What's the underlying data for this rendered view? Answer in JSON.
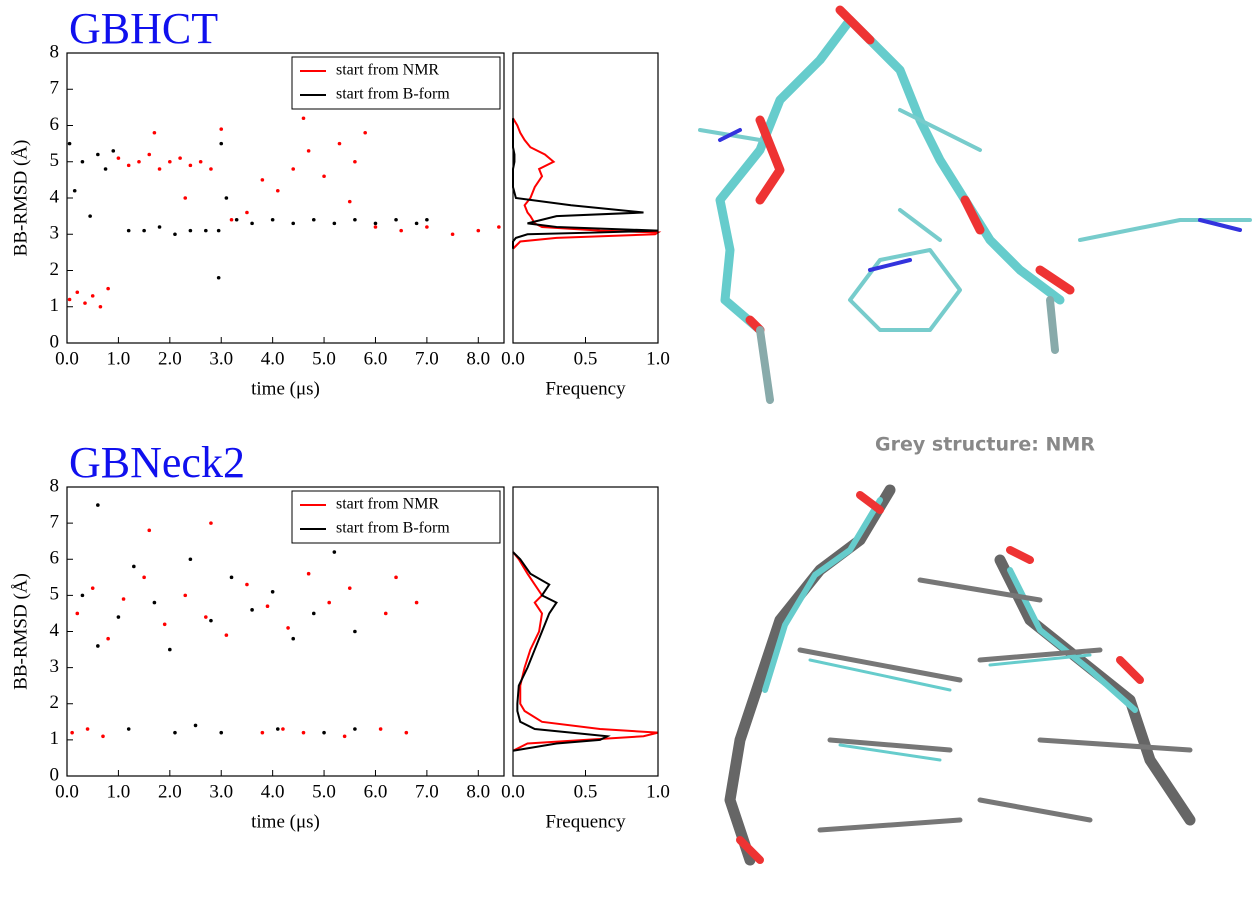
{
  "annotation": "Grey structure: NMR",
  "chart_data": [
    {
      "type": "scatter",
      "title": "GBHCT",
      "xlabel": "time (μs)",
      "ylabel": "BB-RMSD (Å)",
      "xlim": [
        0,
        8.5
      ],
      "ylim": [
        0,
        8
      ],
      "xticks": [
        {
          "value": 0,
          "label": "0.0"
        },
        {
          "value": 1,
          "label": "1.0"
        },
        {
          "value": 2,
          "label": "2.0"
        },
        {
          "value": 3,
          "label": "3.0"
        },
        {
          "value": 4,
          "label": "4.0"
        },
        {
          "value": 5,
          "label": "5.0"
        },
        {
          "value": 6,
          "label": "6.0"
        },
        {
          "value": 7,
          "label": "7.0"
        },
        {
          "value": 8,
          "label": "8.0"
        }
      ],
      "yticks": [
        0,
        1,
        2,
        3,
        4,
        5,
        6,
        7,
        8
      ],
      "legend": "upper right",
      "series": [
        {
          "name": "start from NMR",
          "color": "#ff0000",
          "x": [
            0.05,
            0.2,
            0.35,
            0.5,
            0.65,
            0.8,
            1.0,
            1.2,
            1.4,
            1.6,
            1.8,
            2.0,
            2.2,
            2.4,
            2.6,
            2.8,
            1.7,
            2.3,
            3.0,
            3.2,
            3.5,
            3.8,
            4.1,
            4.4,
            4.7,
            5.0,
            5.3,
            5.6,
            5.8,
            4.6,
            5.5,
            6.0,
            6.5,
            7.0,
            7.5,
            8.0,
            8.4
          ],
          "values": [
            1.2,
            1.4,
            1.1,
            1.3,
            1.0,
            1.5,
            5.1,
            4.9,
            5.0,
            5.2,
            4.8,
            5.0,
            5.1,
            4.9,
            5.0,
            4.8,
            5.8,
            4.0,
            5.9,
            3.4,
            3.6,
            4.5,
            4.2,
            4.8,
            5.3,
            4.6,
            5.5,
            5.0,
            5.8,
            6.2,
            3.9,
            3.2,
            3.1,
            3.2,
            3.0,
            3.1,
            3.2
          ]
        },
        {
          "name": "start from B-form",
          "color": "#000000",
          "x": [
            0.05,
            0.15,
            0.3,
            0.45,
            0.6,
            0.75,
            0.9,
            1.2,
            1.5,
            1.8,
            2.1,
            2.4,
            2.7,
            2.95,
            3.0,
            3.1,
            3.3,
            3.6,
            4.0,
            4.4,
            4.8,
            5.2,
            5.6,
            6.0,
            6.4,
            6.8,
            7.0,
            2.95
          ],
          "values": [
            5.5,
            4.2,
            5.0,
            3.5,
            5.2,
            4.8,
            5.3,
            3.1,
            3.1,
            3.2,
            3.0,
            3.1,
            3.1,
            3.1,
            5.5,
            4.0,
            3.4,
            3.3,
            3.4,
            3.3,
            3.4,
            3.3,
            3.4,
            3.3,
            3.4,
            3.3,
            3.4,
            1.8
          ]
        }
      ]
    },
    {
      "type": "line",
      "xlabel": "Frequency",
      "xlim": [
        0,
        1
      ],
      "ylim": [
        0,
        8
      ],
      "xticks": [
        {
          "value": 0,
          "label": "0.0"
        },
        {
          "value": 0.5,
          "label": "0.5"
        },
        {
          "value": 1,
          "label": "1.0"
        }
      ],
      "y": [
        2.6,
        2.8,
        2.9,
        3.0,
        3.05,
        3.1,
        3.2,
        3.3,
        3.5,
        3.6,
        3.8,
        4.0,
        4.3,
        4.6,
        4.8,
        5.0,
        5.2,
        5.4,
        5.6,
        5.8,
        6.0,
        6.2
      ],
      "series": [
        {
          "color": "#ff0000",
          "values": [
            0,
            0.05,
            0.3,
            0.98,
            1.0,
            0.6,
            0.2,
            0.15,
            0.12,
            0.1,
            0.08,
            0.12,
            0.15,
            0.2,
            0.18,
            0.28,
            0.22,
            0.12,
            0.08,
            0.05,
            0.03,
            0
          ]
        },
        {
          "color": "#000000",
          "values": [
            0,
            0,
            0.02,
            0.1,
            0.6,
            1.0,
            0.3,
            0.1,
            0.3,
            0.9,
            0.4,
            0.02,
            0,
            0,
            0,
            0.01,
            0.01,
            0,
            0,
            0,
            0,
            0
          ]
        }
      ]
    },
    {
      "type": "scatter",
      "title": "GBNeck2",
      "xlabel": "time (μs)",
      "ylabel": "BB-RMSD (Å)",
      "xlim": [
        0,
        8.5
      ],
      "ylim": [
        0,
        8
      ],
      "xticks": [
        {
          "value": 0,
          "label": "0.0"
        },
        {
          "value": 1,
          "label": "1.0"
        },
        {
          "value": 2,
          "label": "2.0"
        },
        {
          "value": 3,
          "label": "3.0"
        },
        {
          "value": 4,
          "label": "4.0"
        },
        {
          "value": 5,
          "label": "5.0"
        },
        {
          "value": 6,
          "label": "6.0"
        },
        {
          "value": 7,
          "label": "7.0"
        },
        {
          "value": 8,
          "label": "8.0"
        }
      ],
      "yticks": [
        0,
        1,
        2,
        3,
        4,
        5,
        6,
        7,
        8
      ],
      "legend": "upper right",
      "series": [
        {
          "name": "start from NMR",
          "color": "#ff0000",
          "x": [
            0.2,
            0.5,
            0.8,
            1.1,
            1.5,
            1.9,
            2.3,
            2.7,
            3.1,
            3.5,
            3.9,
            4.3,
            4.7,
            5.1,
            5.5,
            6.2,
            6.4,
            6.8,
            0.1,
            0.4,
            0.7,
            3.8,
            4.2,
            4.6,
            5.4,
            6.1,
            6.6,
            1.6,
            2.8
          ],
          "values": [
            4.5,
            5.2,
            3.8,
            4.9,
            5.5,
            4.2,
            5.0,
            4.4,
            3.9,
            5.3,
            4.7,
            4.1,
            5.6,
            4.8,
            5.2,
            4.5,
            5.5,
            4.8,
            1.2,
            1.3,
            1.1,
            1.2,
            1.3,
            1.2,
            1.1,
            1.3,
            1.2,
            6.8,
            7.0
          ]
        },
        {
          "name": "start from B-form",
          "color": "#000000",
          "x": [
            0.3,
            0.6,
            1.0,
            1.3,
            1.7,
            2.0,
            2.4,
            2.8,
            3.2,
            3.6,
            4.0,
            4.4,
            4.8,
            5.2,
            5.6,
            1.2,
            2.1,
            2.5,
            3.0,
            4.1,
            5.0,
            5.6,
            0.6
          ],
          "values": [
            5.0,
            3.6,
            4.4,
            5.8,
            4.8,
            3.5,
            6.0,
            4.3,
            5.5,
            4.6,
            5.1,
            3.8,
            4.5,
            6.2,
            4.0,
            1.3,
            1.2,
            1.4,
            1.2,
            1.3,
            1.2,
            1.3,
            7.5
          ]
        }
      ]
    },
    {
      "type": "line",
      "xlabel": "Frequency",
      "xlim": [
        0,
        1
      ],
      "ylim": [
        0,
        8
      ],
      "xticks": [
        {
          "value": 0,
          "label": "0.0"
        },
        {
          "value": 0.5,
          "label": "0.5"
        },
        {
          "value": 1,
          "label": "1.0"
        }
      ],
      "y": [
        0.7,
        0.9,
        1.0,
        1.1,
        1.2,
        1.3,
        1.5,
        1.8,
        2.0,
        2.5,
        3.0,
        3.5,
        4.0,
        4.5,
        4.8,
        5.0,
        5.3,
        5.6,
        6.0,
        6.2
      ],
      "series": [
        {
          "color": "#ff0000",
          "values": [
            0,
            0.1,
            0.5,
            0.9,
            1.0,
            0.6,
            0.2,
            0.08,
            0.05,
            0.05,
            0.08,
            0.12,
            0.18,
            0.2,
            0.15,
            0.2,
            0.15,
            0.1,
            0.04,
            0
          ]
        },
        {
          "color": "#000000",
          "values": [
            0,
            0.3,
            0.6,
            0.65,
            0.4,
            0.15,
            0.05,
            0.03,
            0.03,
            0.04,
            0.1,
            0.15,
            0.2,
            0.25,
            0.3,
            0.2,
            0.25,
            0.12,
            0.05,
            0
          ]
        }
      ]
    }
  ]
}
